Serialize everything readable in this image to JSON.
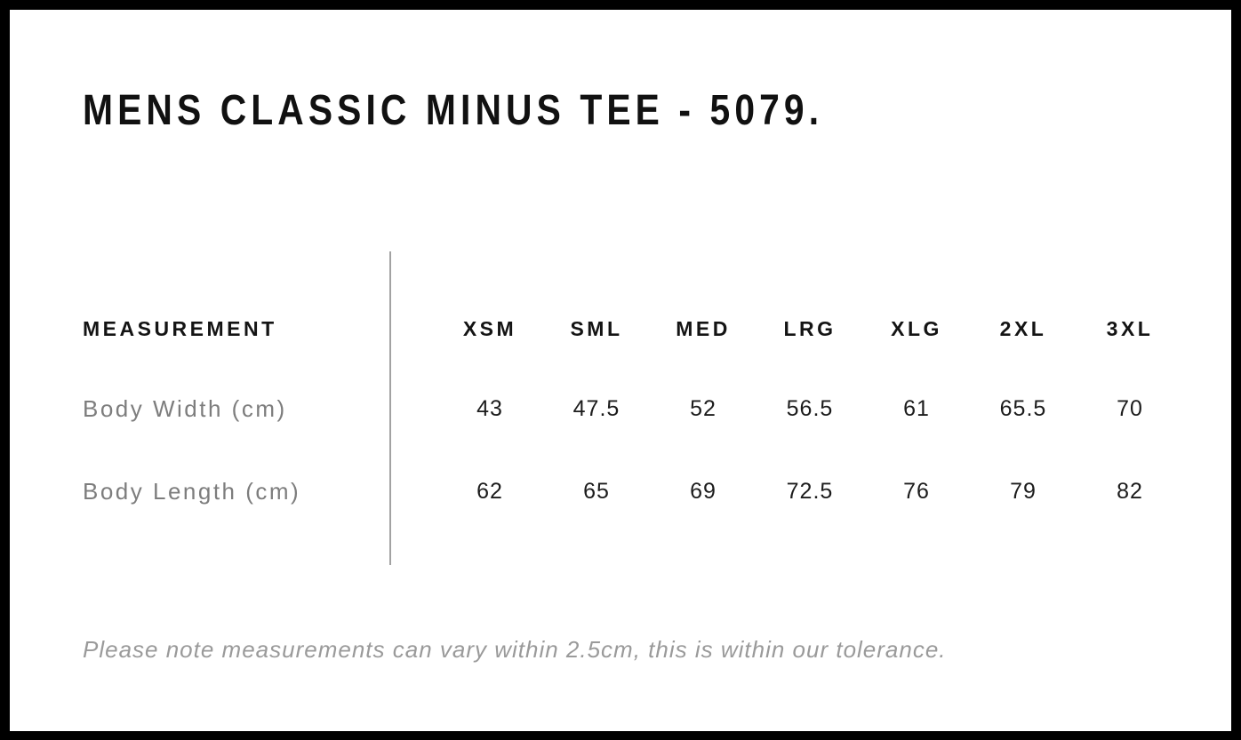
{
  "page": {
    "title": "MENS CLASSIC MINUS TEE - 5079.",
    "tolerance_note": "Please note measurements can vary within 2.5cm, this is within our tolerance."
  },
  "size_chart": {
    "measurement_header": "MEASUREMENT",
    "columns": [
      "XSM",
      "SML",
      "MED",
      "LRG",
      "XLG",
      "2XL",
      "3XL"
    ],
    "rows": [
      {
        "label": "Body Width (cm)",
        "values": [
          "43",
          "47.5",
          "52",
          "56.5",
          "61",
          "65.5",
          "70"
        ]
      },
      {
        "label": "Body Length (cm)",
        "values": [
          "62",
          "65",
          "69",
          "72.5",
          "76",
          "79",
          "82"
        ]
      }
    ]
  },
  "chart_data": {
    "type": "table",
    "title": "MENS CLASSIC MINUS TEE - 5079.",
    "columns": [
      "MEASUREMENT",
      "XSM",
      "SML",
      "MED",
      "LRG",
      "XLG",
      "2XL",
      "3XL"
    ],
    "rows": [
      [
        "Body Width (cm)",
        43,
        47.5,
        52,
        56.5,
        61,
        65.5,
        70
      ],
      [
        "Body Length (cm)",
        62,
        65,
        69,
        72.5,
        76,
        79,
        82
      ]
    ],
    "footnote": "Please note measurements can vary within 2.5cm, this is within our tolerance."
  },
  "colors": {
    "frame": "#000000",
    "background": "#ffffff",
    "title_text": "#111111",
    "header_text": "#141414",
    "value_text": "#1c1c1c",
    "label_text": "#7d7d7d",
    "note_text": "#9a9a9a",
    "divider": "#a2a2a2"
  }
}
